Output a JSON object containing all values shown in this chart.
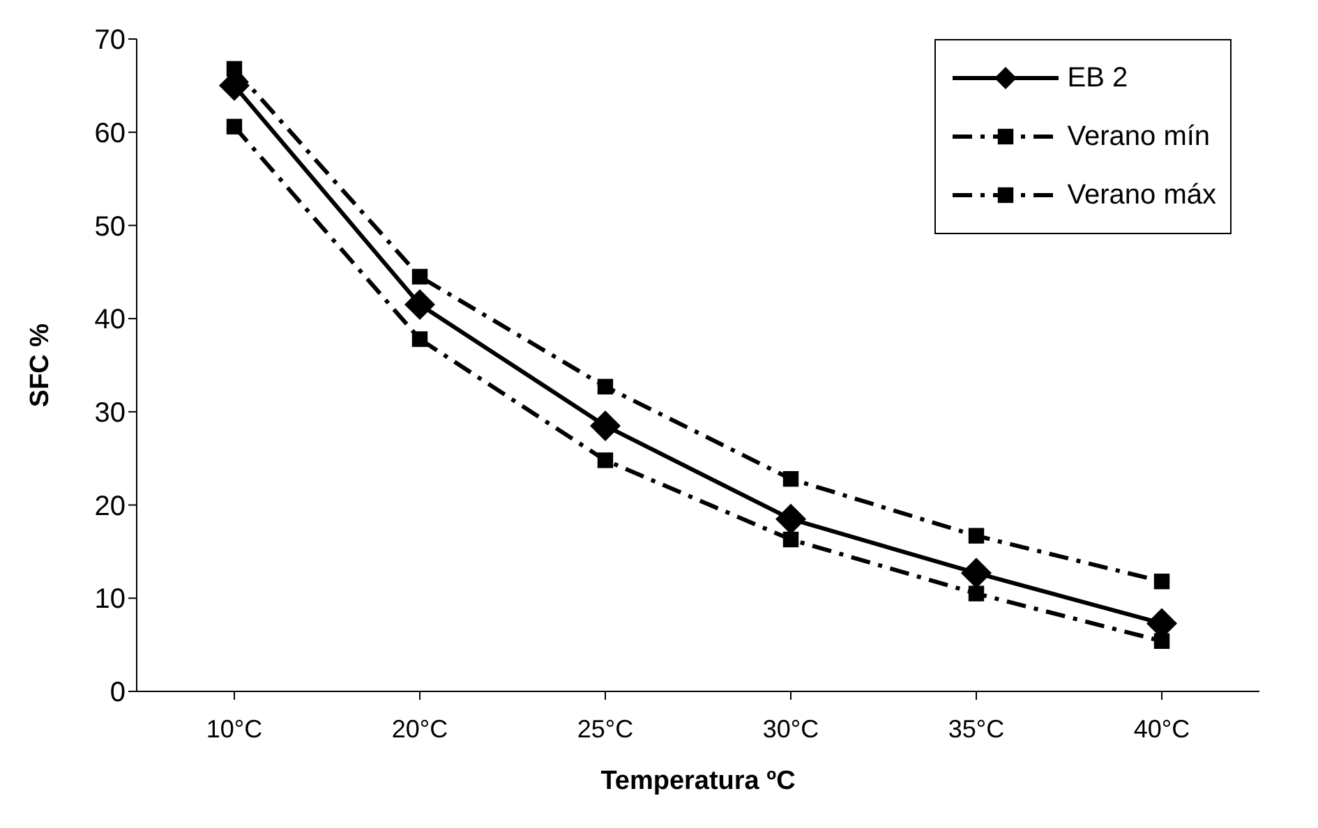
{
  "chart_data": {
    "type": "line",
    "xlabel": "Temperatura ºC",
    "ylabel": "SFC %",
    "categories": [
      "10°C",
      "20°C",
      "25°C",
      "30°C",
      "35°C",
      "40°C"
    ],
    "series": [
      {
        "name": "EB 2",
        "color": "#000000",
        "marker": "diamond",
        "line_style": "solid",
        "values": [
          65,
          41.5,
          28.5,
          18.5,
          12.7,
          7.3
        ]
      },
      {
        "name": "Verano mín",
        "color": "#000000",
        "marker": "square",
        "line_style": "dashed",
        "values": [
          60.6,
          37.8,
          24.8,
          16.3,
          10.5,
          5.4
        ]
      },
      {
        "name": "Verano máx",
        "color": "#000000",
        "marker": "square",
        "line_style": "dashed",
        "values": [
          66.8,
          44.5,
          32.7,
          22.8,
          16.7,
          11.8
        ]
      }
    ],
    "ylim": [
      0,
      70
    ],
    "yticks": [
      0,
      10,
      20,
      30,
      40,
      50,
      60,
      70
    ],
    "grid": false,
    "legend": "top right"
  }
}
